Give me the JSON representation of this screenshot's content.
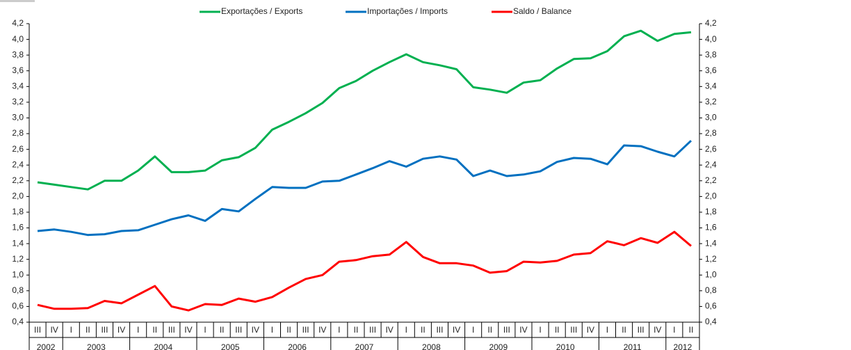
{
  "chart_data": {
    "type": "line",
    "categories": [
      "III",
      "IV",
      "I",
      "II",
      "III",
      "IV",
      "I",
      "II",
      "III",
      "IV",
      "I",
      "II",
      "III",
      "IV",
      "I",
      "II",
      "III",
      "IV",
      "I",
      "II",
      "III",
      "IV",
      "I",
      "II",
      "III",
      "IV",
      "I",
      "II",
      "III",
      "IV",
      "I",
      "II",
      "III",
      "IV",
      "I",
      "II",
      "III",
      "IV",
      "I",
      "II"
    ],
    "years": [
      "2002",
      "2003",
      "2004",
      "2005",
      "2006",
      "2007",
      "2008",
      "2009",
      "2010",
      "2011",
      "2012"
    ],
    "series": [
      {
        "name": "Exportações / Exports",
        "color": "#00b050",
        "values": [
          2.18,
          2.15,
          2.12,
          2.09,
          2.2,
          2.2,
          2.33,
          2.51,
          2.31,
          2.31,
          2.33,
          2.46,
          2.5,
          2.62,
          2.85,
          2.95,
          3.06,
          3.19,
          3.38,
          3.47,
          3.6,
          3.71,
          3.81,
          3.71,
          3.67,
          3.62,
          3.39,
          3.36,
          3.32,
          3.45,
          3.48,
          3.63,
          3.75,
          3.76,
          3.85,
          4.04,
          4.11,
          3.98,
          4.07,
          4.09
        ]
      },
      {
        "name": "Importações / Imports",
        "color": "#0070c0",
        "values": [
          1.56,
          1.58,
          1.55,
          1.51,
          1.52,
          1.56,
          1.57,
          1.64,
          1.71,
          1.76,
          1.69,
          1.84,
          1.81,
          1.97,
          2.12,
          2.11,
          2.11,
          2.19,
          2.2,
          2.28,
          2.36,
          2.45,
          2.38,
          2.48,
          2.51,
          2.47,
          2.26,
          2.33,
          2.26,
          2.28,
          2.32,
          2.44,
          2.49,
          2.48,
          2.41,
          2.65,
          2.64,
          2.57,
          2.51,
          2.71
        ]
      },
      {
        "name": "Saldo / Balance",
        "color": "#ff0000",
        "values": [
          0.62,
          0.57,
          0.57,
          0.58,
          0.67,
          0.64,
          0.75,
          0.86,
          0.6,
          0.55,
          0.63,
          0.62,
          0.7,
          0.66,
          0.72,
          0.84,
          0.95,
          1.0,
          1.17,
          1.19,
          1.24,
          1.26,
          1.42,
          1.23,
          1.15,
          1.15,
          1.12,
          1.03,
          1.05,
          1.17,
          1.16,
          1.18,
          1.26,
          1.28,
          1.43,
          1.38,
          1.47,
          1.41,
          1.55,
          1.37
        ]
      }
    ],
    "ylim": [
      0.4,
      4.2
    ],
    "yticks": [
      {
        "value": 0.4,
        "label": "0,4"
      },
      {
        "value": 0.6,
        "label": "0,6"
      },
      {
        "value": 0.8,
        "label": "0,8"
      },
      {
        "value": 1.0,
        "label": "1,0"
      },
      {
        "value": 1.2,
        "label": "1,2"
      },
      {
        "value": 1.4,
        "label": "1,4"
      },
      {
        "value": 1.6,
        "label": "1,6"
      },
      {
        "value": 1.8,
        "label": "1,8"
      },
      {
        "value": 2.0,
        "label": "2,0"
      },
      {
        "value": 2.2,
        "label": "2,2"
      },
      {
        "value": 2.4,
        "label": "2,4"
      },
      {
        "value": 2.6,
        "label": "2,6"
      },
      {
        "value": 2.8,
        "label": "2,8"
      },
      {
        "value": 3.0,
        "label": "3,0"
      },
      {
        "value": 3.2,
        "label": "3,2"
      },
      {
        "value": 3.4,
        "label": "3,4"
      },
      {
        "value": 3.6,
        "label": "3,6"
      },
      {
        "value": 3.8,
        "label": "3,8"
      },
      {
        "value": 4.0,
        "label": "4,0"
      },
      {
        "value": 4.2,
        "label": "4,2"
      }
    ],
    "y2lim": [
      0.4,
      4.2
    ],
    "y2ticks": [
      {
        "value": 0.4,
        "label": "0,4"
      },
      {
        "value": 0.6,
        "label": "0,6"
      },
      {
        "value": 0.8,
        "label": "0,8"
      },
      {
        "value": 1.0,
        "label": "1,0"
      },
      {
        "value": 1.2,
        "label": "1,2"
      },
      {
        "value": 1.4,
        "label": "1,4"
      },
      {
        "value": 1.6,
        "label": "1,6"
      },
      {
        "value": 1.8,
        "label": "1,8"
      },
      {
        "value": 2.0,
        "label": "2,0"
      },
      {
        "value": 2.2,
        "label": "2,2"
      },
      {
        "value": 2.4,
        "label": "2,4"
      },
      {
        "value": 2.6,
        "label": "2,6"
      },
      {
        "value": 2.8,
        "label": "2,8"
      },
      {
        "value": 3.0,
        "label": "3,0"
      },
      {
        "value": 3.2,
        "label": "3,2"
      },
      {
        "value": 3.4,
        "label": "3,4"
      },
      {
        "value": 3.6,
        "label": "3,6"
      },
      {
        "value": 3.8,
        "label": "3,8"
      },
      {
        "value": 4.0,
        "label": "4,0"
      },
      {
        "value": 4.2,
        "label": "4,2"
      }
    ],
    "legend": "top",
    "grid": false
  }
}
